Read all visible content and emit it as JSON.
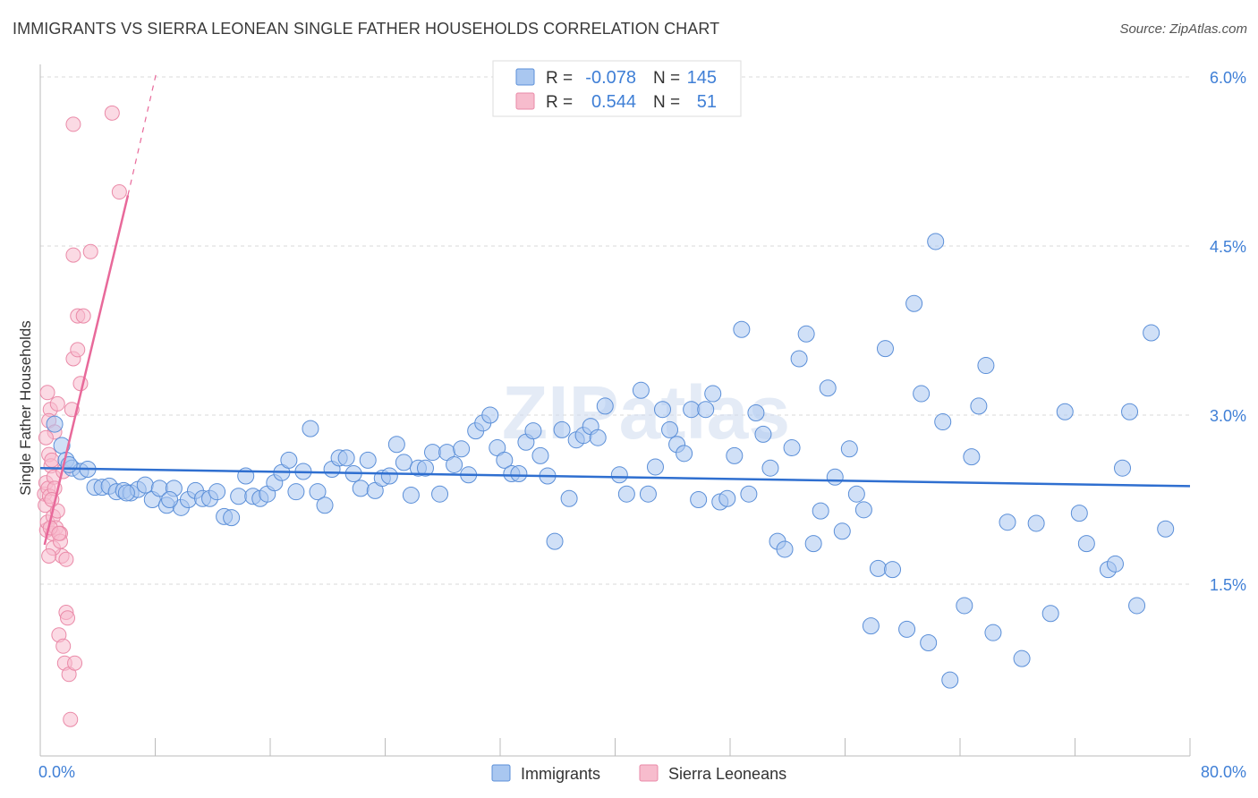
{
  "title": "IMMIGRANTS VS SIERRA LEONEAN SINGLE FATHER HOUSEHOLDS CORRELATION CHART",
  "source": "Source: ZipAtlas.com",
  "watermark": "ZIPatlas",
  "chart_data": {
    "type": "scatter",
    "title": "IMMIGRANTS VS SIERRA LEONEAN SINGLE FATHER HOUSEHOLDS CORRELATION CHART",
    "xlabel": "",
    "ylabel": "Single Father Households",
    "xlim": [
      0,
      80
    ],
    "ylim": [
      0,
      6.2
    ],
    "x_tick_labels": [
      "0.0%",
      "80.0%"
    ],
    "y_ticks": [
      1.5,
      3.0,
      4.5,
      6.0
    ],
    "y_tick_labels": [
      "1.5%",
      "3.0%",
      "4.5%",
      "6.0%"
    ],
    "grid": true,
    "legend_position": "top-center",
    "legend": {
      "rows": [
        {
          "r_label": "R =",
          "r_value": "-0.078",
          "n_label": "N =",
          "n_value": "145"
        },
        {
          "r_label": "R =",
          "r_value": "0.544",
          "n_label": "N =",
          "n_value": "51"
        }
      ]
    },
    "bottom_legend": [
      "Immigrants",
      "Sierra Leoneans"
    ],
    "colors": {
      "immigrants_fill": "#a9c7f0",
      "immigrants_stroke": "#5b8fd8",
      "immigrants_line": "#2f6fd0",
      "sierra_fill": "#f7bccd",
      "sierra_stroke": "#ea8aa8",
      "sierra_line": "#e8699a",
      "axis_text": "#3f7fd6",
      "grid": "#d9d9d9"
    },
    "series": [
      {
        "name": "Immigrants",
        "trend": {
          "x": [
            0,
            80
          ],
          "y": [
            2.53,
            2.37
          ]
        },
        "points": [
          [
            1.0,
            2.92
          ],
          [
            1.5,
            2.73
          ],
          [
            1.8,
            2.6
          ],
          [
            2.2,
            2.53
          ],
          [
            2.8,
            2.5
          ],
          [
            3.3,
            2.52
          ],
          [
            3.8,
            2.36
          ],
          [
            4.3,
            2.36
          ],
          [
            4.8,
            2.37
          ],
          [
            5.3,
            2.32
          ],
          [
            5.8,
            2.33
          ],
          [
            6.3,
            2.31
          ],
          [
            6.8,
            2.34
          ],
          [
            7.3,
            2.38
          ],
          [
            7.8,
            2.25
          ],
          [
            8.3,
            2.35
          ],
          [
            8.8,
            2.2
          ],
          [
            9.3,
            2.35
          ],
          [
            9.8,
            2.18
          ],
          [
            10.3,
            2.25
          ],
          [
            10.8,
            2.33
          ],
          [
            11.3,
            2.26
          ],
          [
            11.8,
            2.26
          ],
          [
            12.3,
            2.32
          ],
          [
            12.8,
            2.1
          ],
          [
            13.3,
            2.09
          ],
          [
            13.8,
            2.28
          ],
          [
            14.3,
            2.46
          ],
          [
            14.8,
            2.28
          ],
          [
            15.3,
            2.26
          ],
          [
            15.8,
            2.3
          ],
          [
            16.3,
            2.4
          ],
          [
            16.8,
            2.49
          ],
          [
            17.3,
            2.6
          ],
          [
            17.8,
            2.32
          ],
          [
            18.3,
            2.5
          ],
          [
            18.8,
            2.88
          ],
          [
            19.3,
            2.32
          ],
          [
            19.8,
            2.2
          ],
          [
            20.3,
            2.52
          ],
          [
            20.8,
            2.62
          ],
          [
            21.3,
            2.62
          ],
          [
            21.8,
            2.48
          ],
          [
            22.3,
            2.35
          ],
          [
            22.8,
            2.6
          ],
          [
            23.3,
            2.33
          ],
          [
            23.8,
            2.44
          ],
          [
            24.3,
            2.46
          ],
          [
            24.8,
            2.74
          ],
          [
            25.3,
            2.58
          ],
          [
            25.8,
            2.29
          ],
          [
            26.3,
            2.53
          ],
          [
            26.8,
            2.53
          ],
          [
            27.3,
            2.67
          ],
          [
            27.8,
            2.3
          ],
          [
            28.3,
            2.67
          ],
          [
            28.8,
            2.56
          ],
          [
            29.3,
            2.7
          ],
          [
            29.8,
            2.47
          ],
          [
            30.3,
            2.86
          ],
          [
            30.8,
            2.93
          ],
          [
            31.3,
            3.0
          ],
          [
            31.8,
            2.71
          ],
          [
            32.3,
            2.6
          ],
          [
            32.8,
            2.48
          ],
          [
            33.3,
            2.48
          ],
          [
            33.8,
            2.76
          ],
          [
            34.3,
            2.86
          ],
          [
            34.8,
            2.64
          ],
          [
            35.3,
            2.46
          ],
          [
            35.8,
            1.88
          ],
          [
            36.3,
            2.87
          ],
          [
            36.8,
            2.26
          ],
          [
            37.3,
            2.78
          ],
          [
            37.8,
            2.82
          ],
          [
            38.3,
            2.9
          ],
          [
            38.8,
            2.8
          ],
          [
            39.3,
            3.08
          ],
          [
            40.3,
            2.47
          ],
          [
            40.8,
            2.3
          ],
          [
            41.8,
            3.22
          ],
          [
            42.3,
            2.3
          ],
          [
            42.8,
            2.54
          ],
          [
            43.3,
            3.05
          ],
          [
            43.8,
            2.87
          ],
          [
            44.3,
            2.74
          ],
          [
            44.8,
            2.66
          ],
          [
            45.3,
            3.05
          ],
          [
            45.8,
            2.25
          ],
          [
            46.3,
            3.05
          ],
          [
            46.8,
            3.19
          ],
          [
            47.3,
            2.23
          ],
          [
            47.8,
            2.26
          ],
          [
            48.3,
            2.64
          ],
          [
            48.8,
            3.76
          ],
          [
            49.3,
            2.3
          ],
          [
            49.8,
            3.02
          ],
          [
            50.3,
            2.83
          ],
          [
            50.8,
            2.53
          ],
          [
            51.3,
            1.88
          ],
          [
            51.8,
            1.81
          ],
          [
            52.3,
            2.71
          ],
          [
            52.8,
            3.5
          ],
          [
            53.3,
            3.72
          ],
          [
            53.8,
            1.86
          ],
          [
            54.3,
            2.15
          ],
          [
            54.8,
            3.24
          ],
          [
            55.3,
            2.45
          ],
          [
            55.8,
            1.97
          ],
          [
            56.3,
            2.7
          ],
          [
            56.8,
            2.3
          ],
          [
            57.3,
            2.16
          ],
          [
            57.8,
            1.13
          ],
          [
            58.3,
            1.64
          ],
          [
            58.8,
            3.59
          ],
          [
            59.3,
            1.63
          ],
          [
            60.3,
            1.1
          ],
          [
            60.8,
            3.99
          ],
          [
            61.3,
            3.19
          ],
          [
            61.8,
            0.98
          ],
          [
            62.3,
            4.54
          ],
          [
            62.8,
            2.94
          ],
          [
            63.3,
            0.65
          ],
          [
            64.3,
            1.31
          ],
          [
            64.8,
            2.63
          ],
          [
            65.3,
            3.08
          ],
          [
            65.8,
            3.44
          ],
          [
            66.3,
            1.07
          ],
          [
            67.3,
            2.05
          ],
          [
            68.3,
            0.84
          ],
          [
            69.3,
            2.04
          ],
          [
            70.3,
            1.24
          ],
          [
            71.3,
            3.03
          ],
          [
            72.3,
            2.13
          ],
          [
            72.8,
            1.86
          ],
          [
            74.3,
            1.63
          ],
          [
            74.8,
            1.68
          ],
          [
            75.3,
            2.53
          ],
          [
            75.8,
            3.03
          ],
          [
            76.3,
            1.31
          ],
          [
            77.3,
            3.73
          ],
          [
            78.3,
            1.99
          ],
          [
            2.0,
            2.56
          ],
          [
            6.0,
            2.31
          ],
          [
            9.0,
            2.25
          ]
        ]
      },
      {
        "name": "Sierra Leoneans",
        "trend": {
          "x": [
            0.3,
            6.1
          ],
          "y": [
            1.85,
            4.95
          ]
        },
        "trend_extension": {
          "x": [
            6.1,
            8.1
          ],
          "y": [
            4.95,
            6.05
          ]
        },
        "points": [
          [
            0.3,
            2.3
          ],
          [
            0.35,
            2.2
          ],
          [
            0.4,
            2.4
          ],
          [
            0.45,
            1.98
          ],
          [
            0.5,
            2.05
          ],
          [
            0.55,
            2.35
          ],
          [
            0.6,
            2.65
          ],
          [
            0.65,
            2.28
          ],
          [
            0.7,
            3.05
          ],
          [
            0.75,
            2.55
          ],
          [
            0.5,
            3.2
          ],
          [
            0.6,
            2.95
          ],
          [
            0.8,
            2.6
          ],
          [
            0.85,
            1.95
          ],
          [
            0.9,
            2.1
          ],
          [
            0.95,
            2.45
          ],
          [
            1.0,
            2.85
          ],
          [
            1.1,
            2.0
          ],
          [
            1.2,
            3.1
          ],
          [
            1.3,
            1.05
          ],
          [
            1.4,
            1.95
          ],
          [
            1.5,
            1.75
          ],
          [
            1.6,
            0.95
          ],
          [
            1.7,
            0.8
          ],
          [
            1.8,
            1.25
          ],
          [
            1.9,
            1.2
          ],
          [
            2.0,
            0.7
          ],
          [
            2.1,
            0.3
          ],
          [
            2.3,
            3.5
          ],
          [
            2.3,
            4.42
          ],
          [
            2.4,
            0.8
          ],
          [
            2.6,
            3.88
          ],
          [
            2.6,
            3.58
          ],
          [
            2.8,
            3.28
          ],
          [
            3.0,
            3.88
          ],
          [
            3.5,
            4.45
          ],
          [
            5.5,
            4.98
          ],
          [
            1.2,
            2.15
          ],
          [
            1.0,
            2.35
          ],
          [
            1.8,
            1.72
          ],
          [
            0.8,
            2.25
          ],
          [
            0.9,
            1.82
          ],
          [
            1.4,
            1.88
          ],
          [
            2.2,
            3.05
          ],
          [
            0.7,
            2.0
          ],
          [
            1.3,
            1.95
          ],
          [
            0.6,
            1.75
          ],
          [
            2.3,
            5.58
          ],
          [
            5.0,
            5.68
          ],
          [
            1.6,
            2.5
          ],
          [
            0.4,
            2.8
          ]
        ]
      }
    ]
  }
}
